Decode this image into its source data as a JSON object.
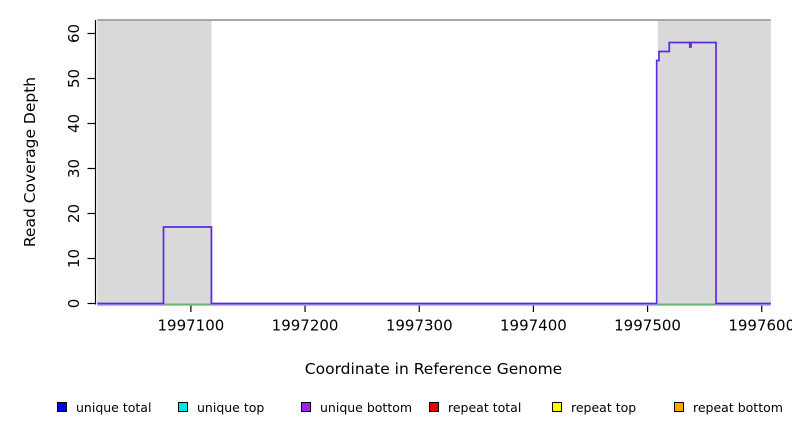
{
  "chart_data": {
    "type": "line",
    "subtype": "step-coverage-plot",
    "title": "",
    "xlabel": "Coordinate in Reference Genome",
    "ylabel": "Read Coverage Depth",
    "xlim": [
      1997016,
      1997609
    ],
    "ylim": [
      0,
      63
    ],
    "x_ticks": [
      1997100,
      1997200,
      1997300,
      1997400,
      1997500,
      1997600
    ],
    "y_ticks": [
      0,
      10,
      20,
      30,
      40,
      50,
      60
    ],
    "grid": false,
    "legend_position": "bottom",
    "shaded_regions": [
      {
        "name": "repeat-masked-region-left",
        "from": 1997018,
        "to": 1997118
      },
      {
        "name": "repeat-masked-region-right",
        "from": 1997509,
        "to": 1997608
      }
    ],
    "frame_top_line": {
      "from": 1997018,
      "to": 1997608,
      "value": 63
    },
    "series": [
      {
        "name": "unique bottom",
        "color": "#5b2bdf",
        "style": "step",
        "step_points": [
          [
            1997018,
            0
          ],
          [
            1997076,
            17
          ],
          [
            1997118,
            0
          ],
          [
            1997508,
            54
          ],
          [
            1997510,
            56
          ],
          [
            1997519,
            58
          ],
          [
            1997537,
            57
          ],
          [
            1997538,
            58
          ],
          [
            1997560,
            0
          ]
        ],
        "end_x": 1997608
      },
      {
        "name": "baseline zero line (light purple)",
        "color": "#a79af2",
        "style": "segments",
        "value": 0,
        "segments": [
          [
            1997018,
            1997608
          ]
        ]
      },
      {
        "name": "zero-coverage accent (green)",
        "color": "#63bb63",
        "style": "segments",
        "value": 0,
        "segments": [
          [
            1997076,
            1997118
          ],
          [
            1997509,
            1997560
          ]
        ]
      }
    ],
    "legend": [
      {
        "label": "unique total",
        "color": "#0000e6"
      },
      {
        "label": "unique top",
        "color": "#00e6e6"
      },
      {
        "label": "unique bottom",
        "color": "#a020f0"
      },
      {
        "label": "repeat total",
        "color": "#e60000"
      },
      {
        "label": "repeat top",
        "color": "#ffff00"
      },
      {
        "label": "repeat bottom",
        "color": "#ffa500"
      }
    ],
    "colors": {
      "shading": "#d9d9d9",
      "frame": "#8c8c8c",
      "axis": "#000000",
      "background": "#ffffff"
    }
  }
}
